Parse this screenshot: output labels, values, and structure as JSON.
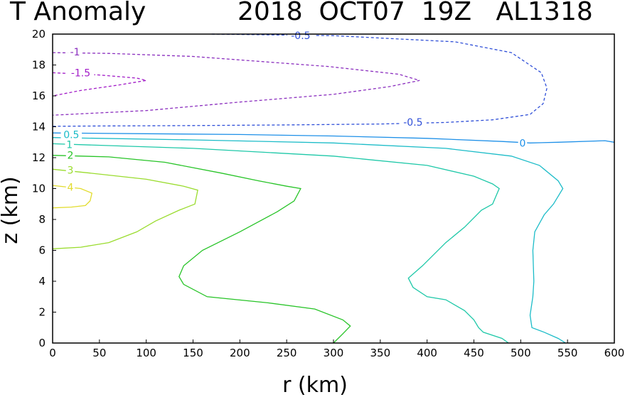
{
  "header": {
    "field": "T Anomaly",
    "datetime_storm": "2018  OCT07  19Z   AL1318"
  },
  "chart_data": {
    "type": "contour",
    "xlabel": "r (km)",
    "ylabel": "z (km)",
    "xlim": [
      0,
      600
    ],
    "ylim": [
      0,
      20
    ],
    "xticks": [
      0,
      50,
      100,
      150,
      200,
      250,
      300,
      350,
      400,
      450,
      500,
      550,
      600
    ],
    "yticks": [
      0,
      2,
      4,
      6,
      8,
      10,
      12,
      14,
      16,
      18,
      20
    ],
    "grid": false,
    "contours": [
      {
        "level": "-0.5",
        "color": "#2f4fd8",
        "dashed": true,
        "points": [
          [
            170,
            20
          ],
          [
            300,
            19.9
          ],
          [
            430,
            19.5
          ],
          [
            490,
            18.8
          ],
          [
            522,
            17.5
          ],
          [
            528,
            16.5
          ],
          [
            524,
            15.5
          ],
          [
            510,
            14.8
          ],
          [
            470,
            14.45
          ],
          [
            420,
            14.28
          ],
          [
            350,
            14.18
          ],
          [
            250,
            14.12
          ],
          [
            150,
            14.08
          ],
          [
            50,
            14.05
          ],
          [
            0,
            14.03
          ]
        ],
        "label_positions": [
          [
            265,
            19.9
          ],
          [
            385,
            14.3
          ]
        ]
      },
      {
        "level": "-1",
        "color": "#8b2fbf",
        "dashed": true,
        "points": [
          [
            0,
            18.8
          ],
          [
            60,
            18.75
          ],
          [
            150,
            18.55
          ],
          [
            250,
            18.1
          ],
          [
            295,
            17.9
          ],
          [
            370,
            17.4
          ],
          [
            392,
            17.0
          ],
          [
            360,
            16.6
          ],
          [
            300,
            16.1
          ],
          [
            200,
            15.6
          ],
          [
            100,
            15.05
          ],
          [
            0,
            14.75
          ]
        ],
        "label_positions": [
          [
            24,
            18.85
          ]
        ]
      },
      {
        "level": "-1.5",
        "color": "#a21cc8",
        "dashed": true,
        "points": [
          [
            0,
            17.5
          ],
          [
            50,
            17.35
          ],
          [
            90,
            17.15
          ],
          [
            100,
            17.0
          ],
          [
            70,
            16.7
          ],
          [
            30,
            16.35
          ],
          [
            0,
            16.0
          ]
        ],
        "label_positions": [
          [
            30,
            17.5
          ]
        ]
      },
      {
        "level": "0",
        "color": "#1e90e8",
        "dashed": false,
        "points": [
          [
            0,
            13.6
          ],
          [
            100,
            13.55
          ],
          [
            200,
            13.5
          ],
          [
            300,
            13.4
          ],
          [
            400,
            13.25
          ],
          [
            480,
            13.05
          ],
          [
            510,
            12.95
          ],
          [
            540,
            13.0
          ],
          [
            590,
            13.1
          ],
          [
            600,
            13.0
          ]
        ],
        "label_positions": [
          [
            502,
            12.95
          ]
        ]
      },
      {
        "level": "0.5",
        "color": "#1cbcc8",
        "dashed": false,
        "points": [
          [
            0,
            13.3
          ],
          [
            150,
            13.15
          ],
          [
            300,
            12.95
          ],
          [
            420,
            12.6
          ],
          [
            490,
            12.1
          ],
          [
            520,
            11.5
          ],
          [
            540,
            10.5
          ],
          [
            545,
            10.0
          ],
          [
            535,
            9.0
          ],
          [
            525,
            8.3
          ],
          [
            515,
            7.2
          ],
          [
            513,
            6.0
          ],
          [
            514,
            4.0
          ],
          [
            513,
            3.0
          ],
          [
            510,
            1.8
          ],
          [
            512,
            1.0
          ],
          [
            525,
            0.7
          ],
          [
            540,
            0.3
          ],
          [
            548,
            0
          ]
        ],
        "label_positions": [
          [
            20,
            13.5
          ]
        ]
      },
      {
        "level": "1",
        "color": "#1ec8a8",
        "dashed": false,
        "points": [
          [
            0,
            12.9
          ],
          [
            150,
            12.6
          ],
          [
            300,
            12.1
          ],
          [
            400,
            11.5
          ],
          [
            450,
            10.8
          ],
          [
            470,
            10.3
          ],
          [
            477,
            10.0
          ],
          [
            470,
            9.0
          ],
          [
            458,
            8.6
          ],
          [
            440,
            7.5
          ],
          [
            420,
            6.5
          ],
          [
            395,
            5.0
          ],
          [
            380,
            4.2
          ],
          [
            385,
            3.6
          ],
          [
            400,
            3.0
          ],
          [
            420,
            2.8
          ],
          [
            440,
            2.1
          ],
          [
            450,
            1.5
          ],
          [
            455,
            1.0
          ],
          [
            460,
            0.7
          ],
          [
            480,
            0.3
          ],
          [
            487,
            0
          ]
        ],
        "label_positions": [
          [
            18,
            12.85
          ]
        ]
      },
      {
        "level": "2",
        "color": "#28c428",
        "dashed": false,
        "points": [
          [
            0,
            12.15
          ],
          [
            60,
            12.05
          ],
          [
            120,
            11.7
          ],
          [
            180,
            11.0
          ],
          [
            220,
            10.5
          ],
          [
            250,
            10.15
          ],
          [
            265,
            10.0
          ],
          [
            258,
            9.2
          ],
          [
            240,
            8.5
          ],
          [
            200,
            7.2
          ],
          [
            160,
            6.0
          ],
          [
            140,
            5.0
          ],
          [
            135,
            4.3
          ],
          [
            140,
            3.8
          ],
          [
            165,
            3.0
          ],
          [
            230,
            2.6
          ],
          [
            280,
            2.2
          ],
          [
            310,
            1.5
          ],
          [
            318,
            1.1
          ],
          [
            310,
            0.6
          ],
          [
            300,
            0
          ]
        ],
        "label_positions": [
          [
            19,
            12.15
          ]
        ]
      },
      {
        "level": "3",
        "color": "#9adc2e",
        "dashed": false,
        "points": [
          [
            0,
            11.25
          ],
          [
            40,
            11.0
          ],
          [
            100,
            10.6
          ],
          [
            140,
            10.15
          ],
          [
            155,
            9.9
          ],
          [
            152,
            9.0
          ],
          [
            135,
            8.6
          ],
          [
            110,
            7.9
          ],
          [
            90,
            7.2
          ],
          [
            60,
            6.5
          ],
          [
            30,
            6.2
          ],
          [
            0,
            6.1
          ]
        ],
        "label_positions": [
          [
            19,
            11.2
          ]
        ]
      },
      {
        "level": "4",
        "color": "#e2dc2e",
        "dashed": false,
        "points": [
          [
            0,
            10.2
          ],
          [
            30,
            10.0
          ],
          [
            42,
            9.7
          ],
          [
            40,
            9.2
          ],
          [
            35,
            8.9
          ],
          [
            20,
            8.8
          ],
          [
            0,
            8.75
          ]
        ],
        "label_positions": [
          [
            19,
            10.1
          ]
        ]
      }
    ]
  }
}
